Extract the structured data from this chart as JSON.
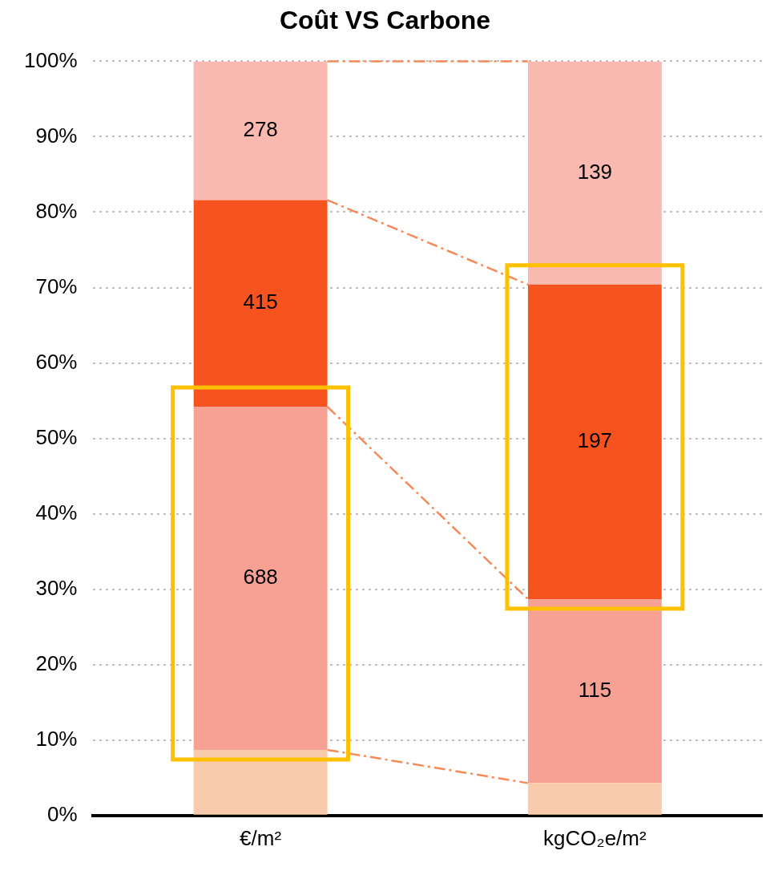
{
  "chart_data": {
    "type": "bar",
    "title": "Coût VS Carbone",
    "categories": [
      "€/m²",
      "kgCO₂e/m²"
    ],
    "stacked": true,
    "series": [
      {
        "color": "#f7cbab",
        "values": [
          8.7,
          4.3
        ]
      },
      {
        "color": "#f7a195",
        "values": [
          45.5,
          24.4
        ]
      },
      {
        "color": "#f7531e",
        "values": [
          27.4,
          41.7
        ]
      },
      {
        "color": "#f9b9b0",
        "values": [
          18.4,
          29.6
        ]
      }
    ],
    "annotations": [
      "278",
      "415",
      "688",
      "139",
      "197",
      "115"
    ],
    "ylim": [
      0,
      100
    ],
    "yticks": [
      {
        "value": 0,
        "label": "0%"
      },
      {
        "value": 10,
        "label": "10%"
      },
      {
        "value": 20,
        "label": "20%"
      },
      {
        "value": 30,
        "label": "30%"
      },
      {
        "value": 40,
        "label": "40%"
      },
      {
        "value": 50,
        "label": "50%"
      },
      {
        "value": 60,
        "label": "60%"
      },
      {
        "value": 70,
        "label": "70%"
      },
      {
        "value": 80,
        "label": "80%"
      },
      {
        "value": 90,
        "label": "90%"
      },
      {
        "value": 100,
        "label": "100%"
      }
    ],
    "grid": "y",
    "legend": false
  }
}
